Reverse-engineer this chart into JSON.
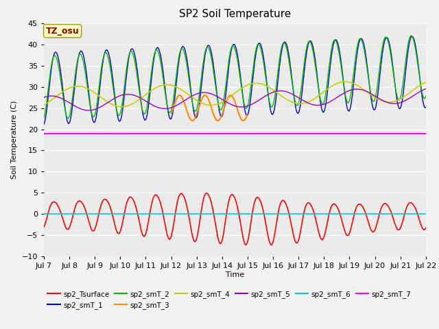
{
  "title": "SP2 Soil Temperature",
  "xlabel": "Time",
  "ylabel": "Soil Temperature (C)",
  "ylim": [
    -10,
    45
  ],
  "yticks": [
    -10,
    -5,
    0,
    5,
    10,
    15,
    20,
    25,
    30,
    35,
    40,
    45
  ],
  "xtick_labels": [
    "Jul 7",
    "Jul 8",
    "Jul 9",
    "Jul 10",
    "Jul 11",
    "Jul 12",
    "Jul 13",
    "Jul 14",
    "Jul 15",
    "Jul 16",
    "Jul 17",
    "Jul 18",
    "Jul 19",
    "Jul 20",
    "Jul 21",
    "Jul 22"
  ],
  "annotation_text": "TZ_osu",
  "annotation_color": "#8B0000",
  "annotation_bg": "#FFFFC0",
  "annotation_edge": "#999900",
  "fig_bg": "#F2F2F2",
  "plot_bg": "#EBEBEB",
  "grid_color": "#FFFFFF",
  "series_colors": {
    "sp2_Tsurface": "#FF0000",
    "sp2_smT_1": "#0000CC",
    "sp2_smT_2": "#00BB00",
    "sp2_smT_3": "#FF8800",
    "sp2_smT_4": "#CCCC00",
    "sp2_smT_5": "#9900CC",
    "sp2_smT_6": "#00CCCC",
    "sp2_smT_7": "#FF00FF"
  }
}
